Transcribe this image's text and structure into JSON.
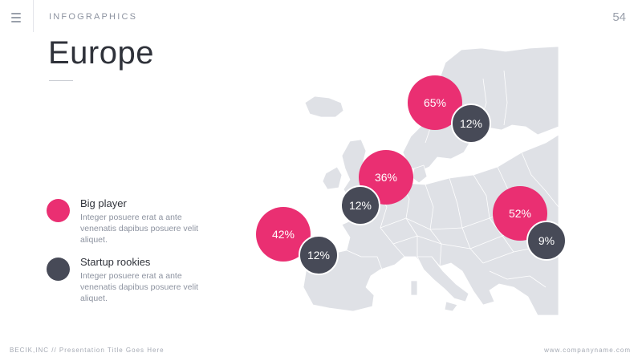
{
  "header": {
    "section_label": "INFOGRAPHICS",
    "page_number": "54"
  },
  "title": "Europe",
  "legend": [
    {
      "title": "Big player",
      "text": "Integer posuere erat a ante venenatis dapibus posuere velit aliquet.",
      "color": "#ea2f72"
    },
    {
      "title": "Startup rookies",
      "text": "Integer posuere erat a ante venenatis dapibus posuere velit aliquet.",
      "color": "#474a57"
    }
  ],
  "markers": {
    "scandinavia_big": "65%",
    "scandinavia_startup": "12%",
    "central_big": "36%",
    "central_startup": "12%",
    "iberia_big": "42%",
    "iberia_startup": "12%",
    "east_big": "52%",
    "east_startup": "9%"
  },
  "colors": {
    "accent": "#ea2f72",
    "secondary": "#474a57",
    "map_fill": "#dfe1e6"
  },
  "footer": {
    "left": "BECIK,INC // Presentation Title Goes Here",
    "right": "www.companyname.com"
  }
}
